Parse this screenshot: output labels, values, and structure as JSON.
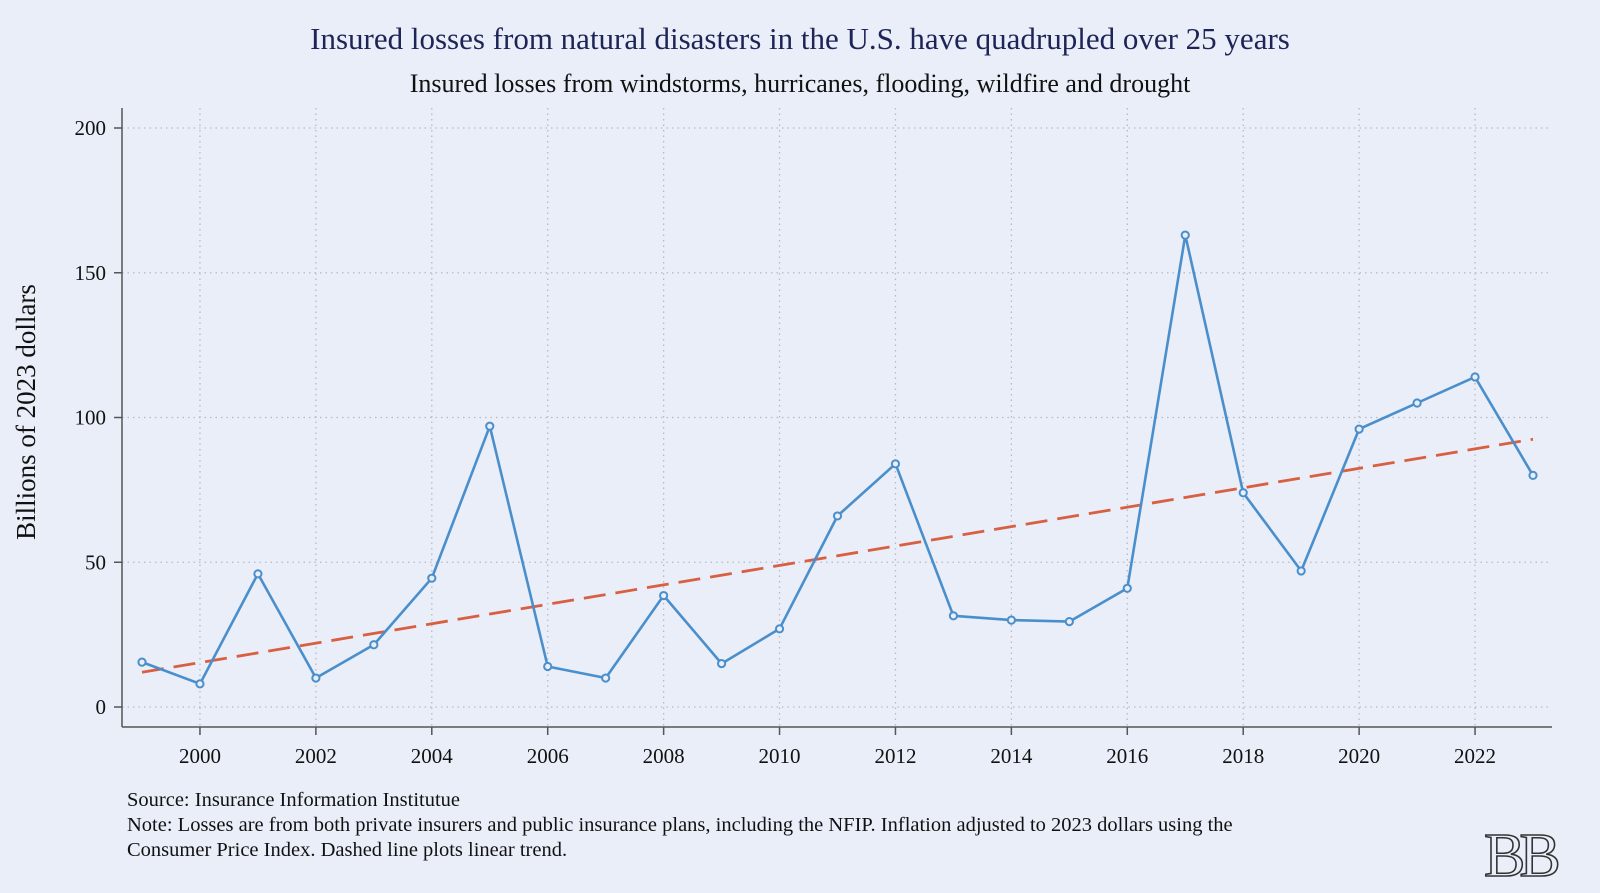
{
  "chart_data": {
    "type": "line",
    "title": "Insured losses from natural disasters in the U.S. have quadrupled over 25 years",
    "subtitle": "Insured losses from windstorms, hurricanes, flooding, wildfire and drought",
    "xlabel": "",
    "ylabel": "Billions of 2023 dollars",
    "xlim": [
      1999,
      2023
    ],
    "ylim": [
      0,
      200
    ],
    "x_ticks": [
      2000,
      2002,
      2004,
      2006,
      2008,
      2010,
      2012,
      2014,
      2016,
      2018,
      2020,
      2022
    ],
    "y_ticks": [
      0,
      50,
      100,
      150,
      200
    ],
    "grid": true,
    "legend": "none",
    "series": [
      {
        "color": "#4a8fcb",
        "line_style": "solid",
        "marker": "hollow-circle",
        "x": [
          1999,
          2000,
          2001,
          2002,
          2003,
          2004,
          2005,
          2006,
          2007,
          2008,
          2009,
          2010,
          2011,
          2012,
          2013,
          2014,
          2015,
          2016,
          2017,
          2018,
          2019,
          2020,
          2021,
          2022,
          2023
        ],
        "values": [
          15.5,
          8,
          46,
          10,
          21.5,
          44.5,
          97,
          14,
          10,
          38.5,
          15,
          27,
          66,
          84,
          31.5,
          30,
          29.5,
          41,
          163,
          74,
          47,
          96,
          105,
          114,
          80
        ]
      },
      {
        "color": "#d95f42",
        "line_style": "dashed",
        "marker": "none",
        "x": [
          1999,
          2023
        ],
        "values": [
          12,
          92.5
        ]
      }
    ],
    "annotations": {
      "source": "Source: Insurance Information Institutue",
      "note_line1": "Note: Losses are from both private insurers and public insurance plans, including the NFIP. Inflation adjusted to 2023 dollars using the",
      "note_line2": "Consumer Price Index. Dashed line plots linear trend.",
      "logo": "BB"
    }
  }
}
